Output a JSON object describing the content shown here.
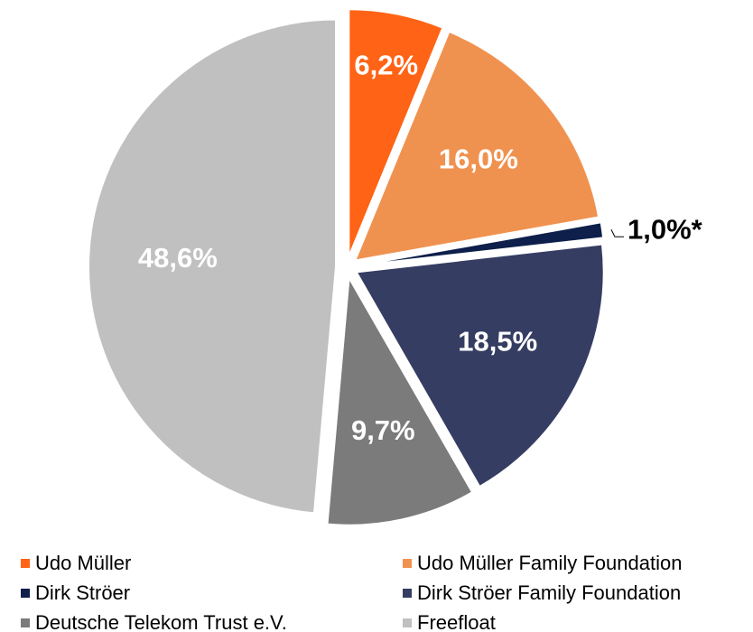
{
  "chart_data": {
    "type": "pie",
    "categories": [
      "Udo Müller",
      "Udo Müller Family Foundation",
      "Dirk Ströer",
      "Dirk Ströer Family Foundation",
      "Deutsche Telekom Trust e.V.",
      "Freefloat"
    ],
    "values": [
      6.2,
      16.0,
      1.0,
      18.5,
      9.7,
      48.6
    ],
    "value_labels": [
      "6,2%",
      "16,0%",
      "1,0%*",
      "18,5%",
      "9,7%",
      "48,6%"
    ],
    "colors": [
      "#ff6315",
      "#f0924f",
      "#0d1f4a",
      "#353d62",
      "#7b7b7b",
      "#c0c0c0"
    ]
  }
}
